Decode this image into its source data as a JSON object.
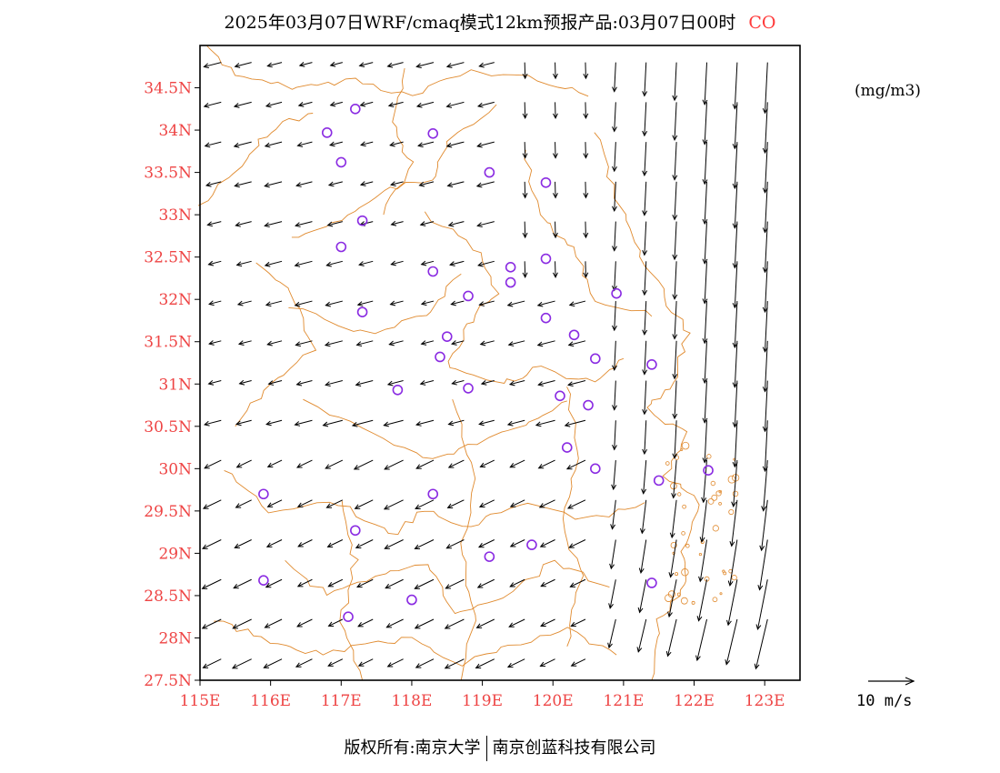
{
  "title": {
    "main": "2025年03月07日WRF/cmaq模式12km预报产品:03月07日00时",
    "pollutant": "CO"
  },
  "unit": "(mg/m3)",
  "reference_vector": {
    "label": "10 m/s",
    "speed": 10
  },
  "footer": {
    "left": "版权所有:南京大学",
    "right": "南京创蓝科技有限公司"
  },
  "colors": {
    "tick_labels": "#ee4444",
    "boundaries": "#e08a2e",
    "stations": "#8a2be2",
    "arrows": "#000000",
    "frame": "#000000"
  },
  "map": {
    "lon_range": [
      115,
      123.5
    ],
    "lat_range": [
      27.5,
      35.0
    ],
    "lat_ticks": [
      "34.5N",
      "34N",
      "33.5N",
      "33N",
      "32.5N",
      "32N",
      "31.5N",
      "31N",
      "30.5N",
      "30N",
      "29.5N",
      "29N",
      "28.5N",
      "28N",
      "27.5N"
    ],
    "lon_ticks": [
      "115E",
      "116E",
      "117E",
      "118E",
      "119E",
      "120E",
      "121E",
      "122E",
      "123E"
    ]
  },
  "stations": [
    [
      117.2,
      34.25
    ],
    [
      116.8,
      33.97
    ],
    [
      118.3,
      33.96
    ],
    [
      117.0,
      33.62
    ],
    [
      119.1,
      33.5
    ],
    [
      119.9,
      33.38
    ],
    [
      117.3,
      32.93
    ],
    [
      117.0,
      32.62
    ],
    [
      119.9,
      32.48
    ],
    [
      119.4,
      32.38
    ],
    [
      118.3,
      32.33
    ],
    [
      119.4,
      32.2
    ],
    [
      118.8,
      32.04
    ],
    [
      120.9,
      32.07
    ],
    [
      117.3,
      31.85
    ],
    [
      119.9,
      31.78
    ],
    [
      120.3,
      31.58
    ],
    [
      118.5,
      31.56
    ],
    [
      118.4,
      31.32
    ],
    [
      120.6,
      31.3
    ],
    [
      121.4,
      31.23
    ],
    [
      117.8,
      30.93
    ],
    [
      118.8,
      30.95
    ],
    [
      120.1,
      30.86
    ],
    [
      120.5,
      30.75
    ],
    [
      120.2,
      30.25
    ],
    [
      120.6,
      30.0
    ],
    [
      121.5,
      29.86
    ],
    [
      122.2,
      29.98
    ],
    [
      115.9,
      29.7
    ],
    [
      118.3,
      29.7
    ],
    [
      117.2,
      29.27
    ],
    [
      119.7,
      29.1
    ],
    [
      119.1,
      28.96
    ],
    [
      115.9,
      28.68
    ],
    [
      121.4,
      28.65
    ],
    [
      118.0,
      28.45
    ],
    [
      117.1,
      28.25
    ]
  ]
}
